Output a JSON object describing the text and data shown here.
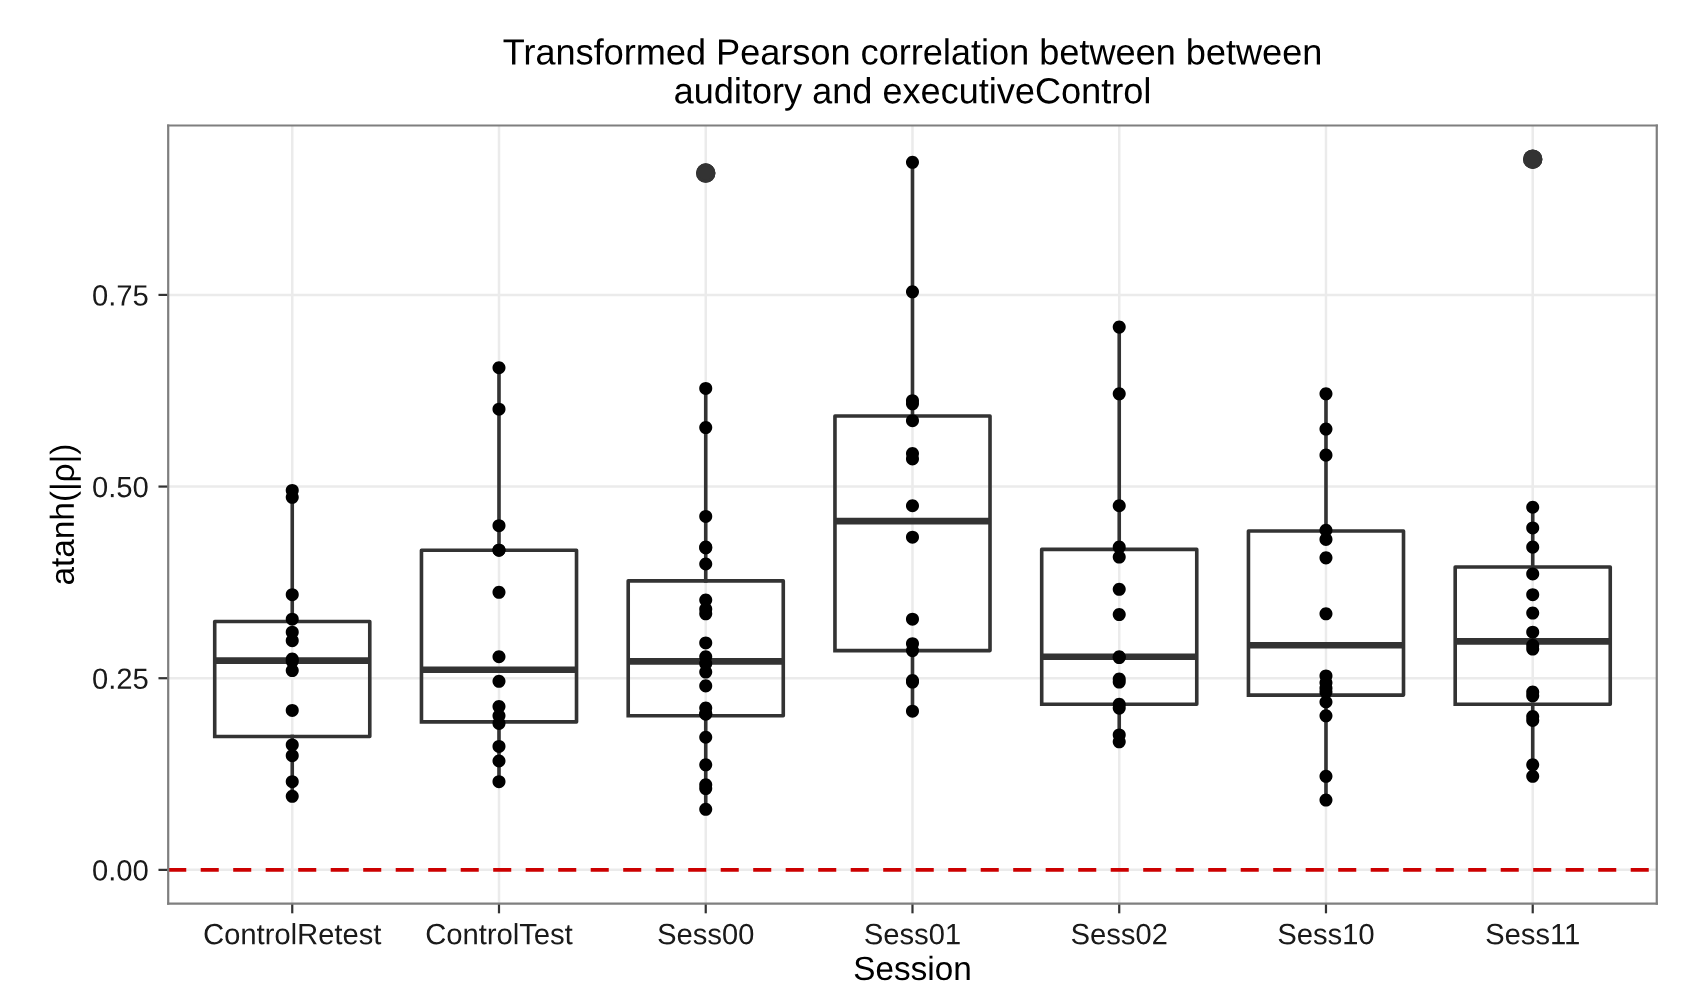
{
  "chart_data": {
    "type": "box",
    "title": "Transformed Pearson correlation between between\nauditory and executiveControl",
    "xlabel": "Session",
    "ylabel": "atanh(|ρ|)",
    "categories": [
      "ControlRetest",
      "ControlTest",
      "Sess00",
      "Sess01",
      "Sess02",
      "Sess10",
      "Sess11"
    ],
    "boxes": [
      {
        "low": 0.096,
        "q1": 0.174,
        "median": 0.273,
        "q3": 0.324,
        "high": 0.492
      },
      {
        "low": 0.115,
        "q1": 0.193,
        "median": 0.261,
        "q3": 0.417,
        "high": 0.654
      },
      {
        "low": 0.079,
        "q1": 0.201,
        "median": 0.272,
        "q3": 0.377,
        "high": 0.628,
        "outliers": [
          0.909,
          0.909
        ]
      },
      {
        "low": 0.207,
        "q1": 0.286,
        "median": 0.455,
        "q3": 0.592,
        "high": 0.923
      },
      {
        "low": 0.167,
        "q1": 0.216,
        "median": 0.278,
        "q3": 0.418,
        "high": 0.707
      },
      {
        "low": 0.091,
        "q1": 0.228,
        "median": 0.293,
        "q3": 0.442,
        "high": 0.621
      },
      {
        "low": 0.122,
        "q1": 0.216,
        "median": 0.298,
        "q3": 0.395,
        "high": 0.473,
        "outliers": [
          0.927,
          0.927
        ]
      }
    ],
    "series": [
      {
        "type": "scatter",
        "color": "#000000",
        "x": [
          "ControlRetest",
          "ControlRetest",
          "ControlRetest",
          "ControlRetest",
          "ControlRetest",
          "ControlRetest",
          "ControlRetest",
          "ControlRetest",
          "ControlRetest",
          "ControlRetest",
          "ControlRetest",
          "ControlRetest",
          "ControlRetest",
          "ControlRetest",
          "ControlTest",
          "ControlTest",
          "ControlTest",
          "ControlTest",
          "ControlTest",
          "ControlTest",
          "ControlTest",
          "ControlTest",
          "ControlTest",
          "ControlTest",
          "ControlTest",
          "ControlTest",
          "ControlTest",
          "ControlTest",
          "Sess00",
          "Sess00",
          "Sess00",
          "Sess00",
          "Sess00",
          "Sess00",
          "Sess00",
          "Sess00",
          "Sess00",
          "Sess00",
          "Sess00",
          "Sess00",
          "Sess00",
          "Sess00",
          "Sess00",
          "Sess00",
          "Sess00",
          "Sess00",
          "Sess00",
          "Sess00",
          "Sess00",
          "Sess00",
          "Sess01",
          "Sess01",
          "Sess01",
          "Sess01",
          "Sess01",
          "Sess01",
          "Sess01",
          "Sess01",
          "Sess01",
          "Sess01",
          "Sess01",
          "Sess01",
          "Sess01",
          "Sess01",
          "Sess01",
          "Sess02",
          "Sess02",
          "Sess02",
          "Sess02",
          "Sess02",
          "Sess02",
          "Sess02",
          "Sess02",
          "Sess02",
          "Sess02",
          "Sess02",
          "Sess02",
          "Sess02",
          "Sess02",
          "Sess02",
          "Sess10",
          "Sess10",
          "Sess10",
          "Sess10",
          "Sess10",
          "Sess10",
          "Sess10",
          "Sess10",
          "Sess10",
          "Sess10",
          "Sess10",
          "Sess10",
          "Sess10",
          "Sess10",
          "Sess10",
          "Sess11",
          "Sess11",
          "Sess11",
          "Sess11",
          "Sess11",
          "Sess11",
          "Sess11",
          "Sess11",
          "Sess11",
          "Sess11",
          "Sess11",
          "Sess11",
          "Sess11",
          "Sess11",
          "Sess11"
        ],
        "values": [
          0.495,
          0.486,
          0.359,
          0.327,
          0.31,
          0.299,
          0.275,
          0.272,
          0.26,
          0.208,
          0.163,
          0.149,
          0.115,
          0.096,
          0.655,
          0.601,
          0.449,
          0.417,
          0.417,
          0.362,
          0.278,
          0.246,
          0.213,
          0.201,
          0.191,
          0.161,
          0.142,
          0.115,
          0.628,
          0.577,
          0.461,
          0.421,
          0.42,
          0.399,
          0.352,
          0.34,
          0.334,
          0.296,
          0.278,
          0.269,
          0.258,
          0.24,
          0.211,
          0.204,
          0.203,
          0.173,
          0.137,
          0.111,
          0.106,
          0.079,
          0.923,
          0.754,
          0.612,
          0.608,
          0.586,
          0.543,
          0.536,
          0.475,
          0.434,
          0.327,
          0.295,
          0.286,
          0.247,
          0.245,
          0.207,
          0.708,
          0.621,
          0.475,
          0.421,
          0.408,
          0.366,
          0.333,
          0.278,
          0.277,
          0.249,
          0.245,
          0.216,
          0.211,
          0.176,
          0.167,
          0.621,
          0.575,
          0.541,
          0.443,
          0.431,
          0.407,
          0.334,
          0.253,
          0.244,
          0.237,
          0.232,
          0.219,
          0.201,
          0.122,
          0.091,
          0.473,
          0.446,
          0.421,
          0.386,
          0.359,
          0.335,
          0.31,
          0.293,
          0.288,
          0.232,
          0.227,
          0.2,
          0.195,
          0.137,
          0.122
        ]
      }
    ],
    "ylim": [
      -0.044,
      0.971
    ],
    "yticks": [
      {
        "value": 0,
        "label": "0.00"
      },
      {
        "value": 0.25,
        "label": "0.25"
      },
      {
        "value": 0.5,
        "label": "0.50"
      },
      {
        "value": 0.75,
        "label": "0.75"
      }
    ],
    "ref_lines": [
      {
        "axis": "y",
        "value": 0,
        "color": "#cc0000",
        "line_style": "dashed"
      }
    ],
    "grid": true
  }
}
